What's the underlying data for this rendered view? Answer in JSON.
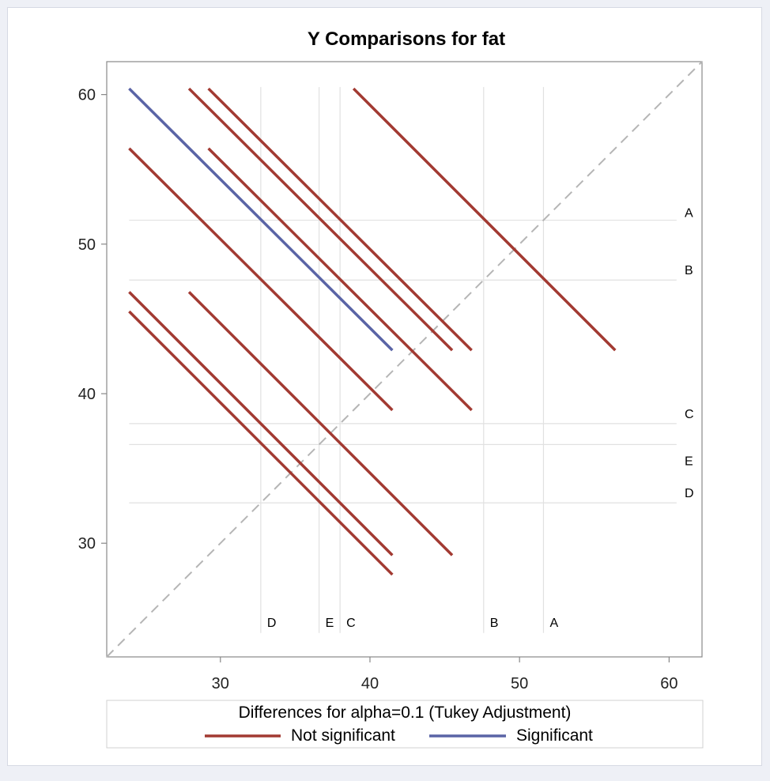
{
  "chart_data": {
    "type": "line",
    "title": "Y Comparisons for fat",
    "xlabel": "",
    "ylabel": "",
    "xlim": [
      22.4,
      62.2
    ],
    "ylim": [
      22.4,
      62.2
    ],
    "x_ticks": [
      30,
      40,
      50,
      60
    ],
    "y_ticks": [
      30,
      40,
      50,
      60
    ],
    "diagonal_reference": true,
    "group_means": [
      {
        "label": "A",
        "value": 51.6
      },
      {
        "label": "B",
        "value": 47.6
      },
      {
        "label": "C",
        "value": 38.0
      },
      {
        "label": "E",
        "value": 36.6
      },
      {
        "label": "D",
        "value": 32.7
      }
    ],
    "segments": [
      {
        "status": "Not significant",
        "x": [
          38.9,
          56.4
        ],
        "y": [
          60.4,
          42.9
        ]
      },
      {
        "status": "Not significant",
        "x": [
          27.9,
          45.5
        ],
        "y": [
          60.4,
          42.9
        ]
      },
      {
        "status": "Not significant",
        "x": [
          29.2,
          46.8
        ],
        "y": [
          60.4,
          42.9
        ]
      },
      {
        "status": "Not significant",
        "x": [
          29.2,
          46.8
        ],
        "y": [
          56.4,
          38.9
        ]
      },
      {
        "status": "Not significant",
        "x": [
          23.9,
          41.5
        ],
        "y": [
          56.4,
          38.9
        ]
      },
      {
        "status": "Not significant",
        "x": [
          23.9,
          41.5
        ],
        "y": [
          46.8,
          29.2
        ]
      },
      {
        "status": "Not significant",
        "x": [
          27.9,
          45.5
        ],
        "y": [
          46.8,
          29.2
        ]
      },
      {
        "status": "Not significant",
        "x": [
          23.9,
          41.5
        ],
        "y": [
          45.5,
          27.9
        ]
      },
      {
        "status": "Significant",
        "x": [
          23.9,
          41.5
        ],
        "y": [
          60.4,
          42.9
        ]
      }
    ],
    "legend": {
      "title": "Differences for alpha=0.1 (Tukey Adjustment)",
      "placement": "bottom",
      "entries": [
        {
          "name": "Not significant",
          "color": "#a23a32"
        },
        {
          "name": "Significant",
          "color": "#5a64a6"
        }
      ]
    },
    "colors": {
      "not_significant": "#a23a32",
      "significant": "#5a64a6",
      "diagonal": "#b5b5b5",
      "ref_lines": "#e1e1e1",
      "axis": "#888888"
    }
  }
}
